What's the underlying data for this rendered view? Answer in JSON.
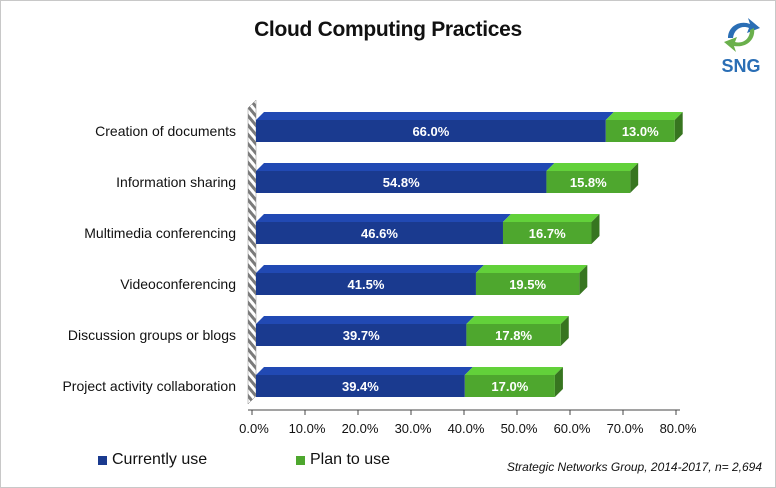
{
  "title": "Cloud Computing Practices",
  "logo": {
    "text": "SNG",
    "colors": {
      "blue": "#2a6eb5",
      "green": "#6ab04c"
    }
  },
  "legend": [
    {
      "label": "Currently use",
      "color": "#1a3a8f"
    },
    {
      "label": "Plan to use",
      "color": "#4ea72e"
    }
  ],
  "source": "Strategic Networks Group, 2014-2017, n= 2,694",
  "chart_data": {
    "type": "bar",
    "orientation": "horizontal",
    "stacked": true,
    "title": "Cloud Computing Practices",
    "categories": [
      "Creation of documents",
      "Information sharing",
      "Multimedia conferencing",
      "Videoconferencing",
      "Discussion groups or blogs",
      "Project activity collaboration"
    ],
    "series": [
      {
        "name": "Currently use",
        "color": "#1a3a8f",
        "values": [
          66.0,
          54.8,
          46.6,
          41.5,
          39.7,
          39.4
        ],
        "labels": [
          "66.0%",
          "54.8%",
          "46.6%",
          "41.5%",
          "39.7%",
          "39.4%"
        ]
      },
      {
        "name": "Plan to use",
        "color": "#4ea72e",
        "values": [
          13.0,
          15.8,
          16.7,
          19.5,
          17.8,
          17.0
        ],
        "labels": [
          "13.0%",
          "15.8%",
          "16.7%",
          "19.5%",
          "17.8%",
          "17.0%"
        ]
      }
    ],
    "xlim": [
      0,
      80
    ],
    "xticks": [
      0,
      10,
      20,
      30,
      40,
      50,
      60,
      70,
      80
    ],
    "xtick_labels": [
      "0.0%",
      "10.0%",
      "20.0%",
      "30.0%",
      "40.0%",
      "50.0%",
      "60.0%",
      "70.0%",
      "80.0%"
    ],
    "legend_position": "bottom-left",
    "style": "3d"
  }
}
